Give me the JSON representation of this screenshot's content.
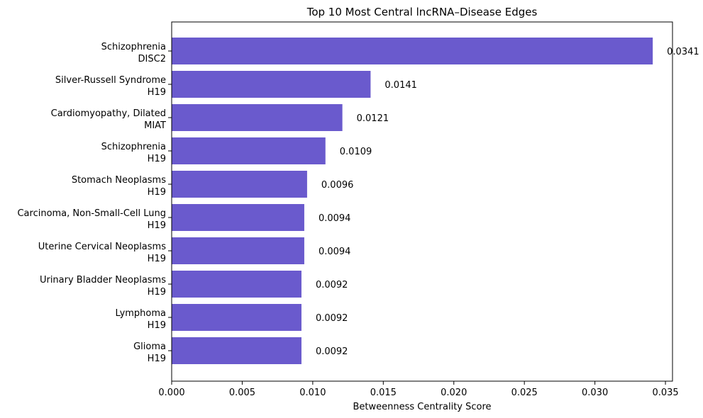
{
  "chart_data": {
    "type": "bar",
    "orientation": "horizontal",
    "title": "Top 10 Most Central lncRNA–Disease Edges",
    "xlabel": "Betweenness Centrality Score",
    "ylabel": "",
    "xlim": [
      0,
      0.0355
    ],
    "xticks": [
      "0.000",
      "0.005",
      "0.010",
      "0.015",
      "0.020",
      "0.025",
      "0.030",
      "0.035"
    ],
    "xtick_values": [
      0,
      0.005,
      0.01,
      0.015,
      0.02,
      0.025,
      0.03,
      0.035
    ],
    "grid": false,
    "bar_color": "#6a5acd",
    "categories": [
      {
        "disease": "Schizophrenia",
        "lncrna": "DISC2"
      },
      {
        "disease": "Silver-Russell Syndrome",
        "lncrna": "H19"
      },
      {
        "disease": "Cardiomyopathy, Dilated",
        "lncrna": "MIAT"
      },
      {
        "disease": "Schizophrenia",
        "lncrna": "H19"
      },
      {
        "disease": "Stomach Neoplasms",
        "lncrna": "H19"
      },
      {
        "disease": "Carcinoma, Non-Small-Cell Lung",
        "lncrna": "H19"
      },
      {
        "disease": "Uterine Cervical Neoplasms",
        "lncrna": "H19"
      },
      {
        "disease": "Urinary Bladder Neoplasms",
        "lncrna": "H19"
      },
      {
        "disease": "Lymphoma",
        "lncrna": "H19"
      },
      {
        "disease": "Glioma",
        "lncrna": "H19"
      }
    ],
    "values": [
      0.0341,
      0.0141,
      0.0121,
      0.0109,
      0.0096,
      0.0094,
      0.0094,
      0.0092,
      0.0092,
      0.0092
    ],
    "value_labels": [
      "0.0341",
      "0.0141",
      "0.0121",
      "0.0109",
      "0.0096",
      "0.0094",
      "0.0094",
      "0.0092",
      "0.0092",
      "0.0092"
    ]
  }
}
